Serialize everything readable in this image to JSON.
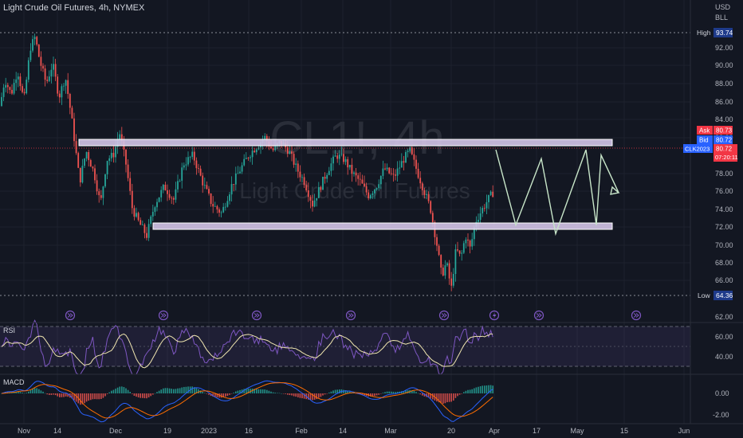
{
  "header": {
    "title": "Light Crude Oil Futures, 4h, NYMEX",
    "currency": "USD",
    "unit": "BLL"
  },
  "watermark": {
    "symbol": "CL1!, 4h",
    "name": "Light Crude Oil Futures"
  },
  "price_axis": {
    "ticks": [
      "92.00",
      "90.00",
      "88.00",
      "86.00",
      "84.00",
      "82.00",
      "78.00",
      "76.00",
      "74.00",
      "72.00",
      "70.00",
      "68.00",
      "66.00"
    ],
    "high_label": "High",
    "high_value": "93.74",
    "low_label": "Low",
    "low_value": "64.36",
    "ask_label": "Ask",
    "ask_value": "80.73",
    "bid_label": "Bid",
    "bid_value": "80.72",
    "contract_label": "CLK2023",
    "last_value": "80.72",
    "countdown": "07:20:11"
  },
  "rsi_panel": {
    "label": "RSI",
    "ticks": [
      "62.00",
      "60.00",
      "40.00"
    ]
  },
  "macd_panel": {
    "label": "MACD",
    "ticks": [
      "0.00",
      "-2.00"
    ]
  },
  "time_axis": {
    "labels": [
      "Nov",
      "14",
      "Dec",
      "19",
      "2023",
      "16",
      "Feb",
      "14",
      "Mar",
      "20",
      "Apr",
      "17",
      "May",
      "15",
      "Jun"
    ]
  },
  "colors": {
    "background": "#131722",
    "up_candle": "#26a69a",
    "down_candle": "#ef5350",
    "zone_fill": "#d4c4e8",
    "projection": "#c8e6c9",
    "rsi_line": "#7e57c2",
    "macd_line": "#2962ff",
    "signal_line": "#ff6d00",
    "last_price_line": "#f23645"
  },
  "icons": {
    "event_marker": "fast-forward-circle-icon",
    "event_marker_alt": "lightning-circle-icon"
  },
  "chart_data": {
    "type": "candlestick",
    "symbol": "CL1!",
    "interval": "4h",
    "ylim": [
      64,
      95
    ],
    "price_path": [
      {
        "t": 0,
        "p": 85.5
      },
      {
        "t": 6,
        "p": 88.5
      },
      {
        "t": 14,
        "p": 86.8
      },
      {
        "t": 22,
        "p": 89.5
      },
      {
        "t": 30,
        "p": 86.0
      },
      {
        "t": 38,
        "p": 92.0
      },
      {
        "t": 44,
        "p": 93.2
      },
      {
        "t": 50,
        "p": 90.5
      },
      {
        "t": 58,
        "p": 88.0
      },
      {
        "t": 66,
        "p": 90.2
      },
      {
        "t": 74,
        "p": 86.5
      },
      {
        "t": 82,
        "p": 88.8
      },
      {
        "t": 90,
        "p": 84.0
      },
      {
        "t": 100,
        "p": 77.0
      },
      {
        "t": 108,
        "p": 80.5
      },
      {
        "t": 118,
        "p": 78.0
      },
      {
        "t": 126,
        "p": 74.5
      },
      {
        "t": 134,
        "p": 79.5
      },
      {
        "t": 142,
        "p": 80.0
      },
      {
        "t": 150,
        "p": 82.5
      },
      {
        "t": 158,
        "p": 79.0
      },
      {
        "t": 166,
        "p": 74.0
      },
      {
        "t": 174,
        "p": 72.5
      },
      {
        "t": 184,
        "p": 71.0
      },
      {
        "t": 194,
        "p": 74.5
      },
      {
        "t": 206,
        "p": 76.5
      },
      {
        "t": 218,
        "p": 75.0
      },
      {
        "t": 230,
        "p": 79.0
      },
      {
        "t": 242,
        "p": 80.0
      },
      {
        "t": 254,
        "p": 77.0
      },
      {
        "t": 266,
        "p": 74.5
      },
      {
        "t": 278,
        "p": 73.5
      },
      {
        "t": 290,
        "p": 76.5
      },
      {
        "t": 302,
        "p": 78.5
      },
      {
        "t": 312,
        "p": 80.0
      },
      {
        "t": 322,
        "p": 81.0
      },
      {
        "t": 332,
        "p": 82.0
      },
      {
        "t": 342,
        "p": 80.5
      },
      {
        "t": 352,
        "p": 81.5
      },
      {
        "t": 362,
        "p": 80.5
      },
      {
        "t": 372,
        "p": 78.5
      },
      {
        "t": 382,
        "p": 77.0
      },
      {
        "t": 392,
        "p": 74.5
      },
      {
        "t": 402,
        "p": 76.5
      },
      {
        "t": 412,
        "p": 78.5
      },
      {
        "t": 422,
        "p": 80.0
      },
      {
        "t": 432,
        "p": 79.5
      },
      {
        "t": 442,
        "p": 78.0
      },
      {
        "t": 452,
        "p": 77.0
      },
      {
        "t": 462,
        "p": 75.5
      },
      {
        "t": 472,
        "p": 76.5
      },
      {
        "t": 482,
        "p": 78.5
      },
      {
        "t": 494,
        "p": 77.5
      },
      {
        "t": 506,
        "p": 79.5
      },
      {
        "t": 514,
        "p": 80.5
      },
      {
        "t": 522,
        "p": 78.5
      },
      {
        "t": 532,
        "p": 76.0
      },
      {
        "t": 540,
        "p": 74.0
      },
      {
        "t": 548,
        "p": 70.0
      },
      {
        "t": 554,
        "p": 66.5
      },
      {
        "t": 560,
        "p": 68.0
      },
      {
        "t": 566,
        "p": 65.0
      },
      {
        "t": 572,
        "p": 69.5
      },
      {
        "t": 578,
        "p": 68.5
      },
      {
        "t": 584,
        "p": 71.0
      },
      {
        "t": 590,
        "p": 69.5
      },
      {
        "t": 596,
        "p": 72.5
      },
      {
        "t": 604,
        "p": 73.8
      },
      {
        "t": 612,
        "p": 75.0
      },
      {
        "t": 620,
        "p": 76.0
      }
    ],
    "resistance_zone": [
      80.2,
      80.8
    ],
    "support_zone": [
      71.8,
      72.4
    ],
    "projection_path": [
      80.6,
      72.2,
      79.6,
      71.2,
      80.6,
      72.2,
      80.0,
      75.8
    ],
    "rsi_range": [
      20,
      80
    ],
    "rsi_levels": [
      70,
      50,
      30
    ],
    "macd_range": [
      -3,
      2
    ]
  }
}
